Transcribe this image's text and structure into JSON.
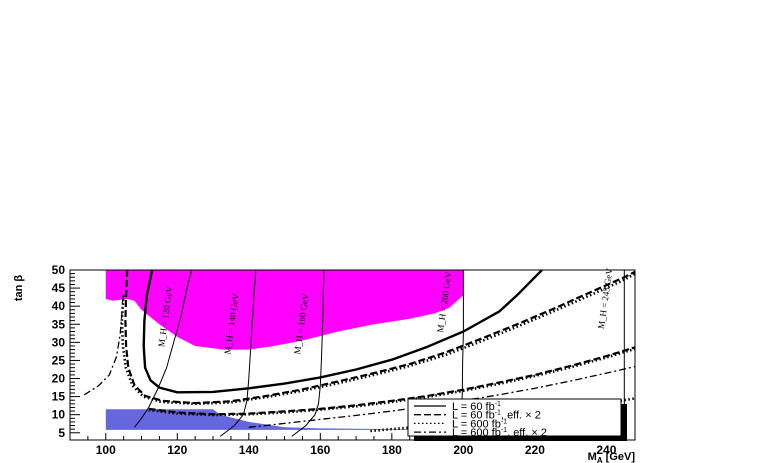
{
  "chart_data": {
    "type": "line",
    "xlabel": "M_A [GeV]",
    "ylabel": "tan β",
    "xlim": [
      90,
      248
    ],
    "ylim": [
      3,
      50
    ],
    "x_ticks": [
      100,
      120,
      140,
      160,
      180,
      200,
      220,
      240
    ],
    "y_ticks": [
      5,
      10,
      15,
      20,
      25,
      30,
      35,
      40,
      45,
      50
    ],
    "grid": false,
    "legend_position": "bottom-right",
    "regions": [
      {
        "color": "#ff00ff",
        "points": [
          [
            100,
            50
          ],
          [
            200,
            50
          ],
          [
            200,
            43
          ],
          [
            196,
            39.5
          ],
          [
            192,
            38
          ],
          [
            185,
            36.5
          ],
          [
            175,
            35
          ],
          [
            165,
            33
          ],
          [
            155,
            30.5
          ],
          [
            147,
            29
          ],
          [
            140,
            28
          ],
          [
            133,
            28
          ],
          [
            125,
            29
          ],
          [
            120,
            31.5
          ],
          [
            115,
            35
          ],
          [
            110,
            39
          ],
          [
            108,
            41.5
          ],
          [
            106,
            42
          ],
          [
            102,
            41.5
          ],
          [
            100,
            42
          ]
        ]
      },
      {
        "color": "#6666dd",
        "points": [
          [
            100,
            11.5
          ],
          [
            130,
            11.5
          ],
          [
            132,
            10
          ],
          [
            140,
            8
          ],
          [
            150,
            6.5
          ],
          [
            160,
            6.2
          ],
          [
            180,
            6
          ],
          [
            198,
            6
          ],
          [
            198,
            5.8
          ],
          [
            100,
            5.8
          ]
        ]
      }
    ],
    "series": [
      {
        "name": "L = 60 fb⁻¹",
        "style": "solid",
        "lines": [
          [
            [
              113,
              50
            ],
            [
              111.5,
              43
            ],
            [
              110.8,
              36
            ],
            [
              110.6,
              29
            ],
            [
              111,
              23
            ],
            [
              112.5,
              19.5
            ],
            [
              115,
              17.5
            ],
            [
              120,
              16.2
            ],
            [
              130,
              16.3
            ],
            [
              140,
              17.3
            ],
            [
              150,
              18.6
            ],
            [
              160,
              20.3
            ],
            [
              170,
              22.5
            ],
            [
              180,
              25.2
            ],
            [
              190,
              28.8
            ],
            [
              200,
              33
            ],
            [
              210,
              38.5
            ],
            [
              215,
              43
            ],
            [
              220,
              48
            ],
            [
              222,
              50
            ]
          ]
        ]
      },
      {
        "name": "L = 60 fb⁻¹, eff. × 2",
        "style": "dashed",
        "lines": [
          [
            [
              106,
              50
            ],
            [
              105.7,
              43
            ],
            [
              105.5,
              36
            ],
            [
              105.7,
              29
            ],
            [
              106.3,
              23
            ],
            [
              108,
              18.2
            ],
            [
              111,
              15.2
            ],
            [
              116,
              13.8
            ],
            [
              125,
              13.2
            ],
            [
              135,
              13.7
            ],
            [
              145,
              15.2
            ],
            [
              155,
              17
            ],
            [
              165,
              19.2
            ],
            [
              175,
              21.5
            ],
            [
              185,
              24
            ],
            [
              195,
              27.2
            ],
            [
              205,
              31
            ],
            [
              215,
              35
            ],
            [
              225,
              39.2
            ],
            [
              235,
              43.6
            ],
            [
              245,
              48
            ],
            [
              248,
              49.5
            ]
          ],
          [
            [
              112,
              11.6
            ],
            [
              120,
              10.6
            ],
            [
              130,
              10.1
            ],
            [
              140,
              10.3
            ],
            [
              150,
              10.9
            ],
            [
              160,
              11.6
            ],
            [
              170,
              12.6
            ],
            [
              180,
              13.8
            ],
            [
              190,
              15.2
            ],
            [
              200,
              16.9
            ],
            [
              210,
              18.9
            ],
            [
              220,
              21
            ],
            [
              230,
              23.5
            ],
            [
              240,
              26.2
            ],
            [
              248,
              28.6
            ]
          ]
        ]
      },
      {
        "name": "L = 600 fb⁻¹",
        "style": "dotted",
        "lines": [
          [
            [
              105,
              43
            ],
            [
              104.5,
              36
            ],
            [
              104.8,
              29
            ],
            [
              105.6,
              23
            ],
            [
              107.5,
              18
            ],
            [
              110.5,
              15
            ],
            [
              115.5,
              13.5
            ],
            [
              125,
              13
            ],
            [
              135,
              13.4
            ],
            [
              145,
              14.9
            ],
            [
              155,
              16.6
            ],
            [
              165,
              18.7
            ],
            [
              175,
              21
            ],
            [
              185,
              23.5
            ],
            [
              195,
              26.5
            ],
            [
              205,
              30.3
            ],
            [
              215,
              34.3
            ],
            [
              225,
              38.5
            ],
            [
              235,
              42.8
            ],
            [
              245,
              47.3
            ],
            [
              248,
              49
            ]
          ],
          [
            [
              112,
              11.3
            ],
            [
              120,
              10.3
            ],
            [
              130,
              9.9
            ],
            [
              140,
              10.1
            ],
            [
              150,
              10.6
            ],
            [
              160,
              11.4
            ],
            [
              170,
              12.3
            ],
            [
              180,
              13.5
            ],
            [
              190,
              14.9
            ],
            [
              200,
              16.6
            ],
            [
              210,
              18.5
            ],
            [
              220,
              20.7
            ],
            [
              230,
              23.1
            ],
            [
              240,
              25.8
            ],
            [
              248,
              28.2
            ]
          ],
          [
            [
              174,
              5.5
            ],
            [
              180,
              6
            ],
            [
              190,
              6.8
            ],
            [
              200,
              7.8
            ],
            [
              210,
              8.9
            ],
            [
              220,
              10.2
            ],
            [
              230,
              11.6
            ],
            [
              240,
              13.2
            ],
            [
              248,
              14.5
            ]
          ]
        ]
      },
      {
        "name": "L = 600 fb⁻¹, eff. × 2",
        "style": "dashdot",
        "lines": [
          [
            [
              94,
              15.5
            ],
            [
              98,
              18
            ],
            [
              101,
              21
            ],
            [
              103,
              26
            ],
            [
              104,
              32
            ],
            [
              104.5,
              38
            ],
            [
              104.8,
              43
            ]
          ],
          [
            [
              140,
              6.5
            ],
            [
              150,
              7.6
            ],
            [
              160,
              8.7
            ],
            [
              170,
              9.8
            ],
            [
              180,
              11
            ],
            [
              190,
              12.4
            ],
            [
              200,
              13.9
            ],
            [
              210,
              15.5
            ],
            [
              220,
              17.3
            ],
            [
              230,
              19.3
            ],
            [
              240,
              21.5
            ],
            [
              248,
              23.3
            ]
          ]
        ]
      }
    ],
    "mass_contours": [
      {
        "label": "M_H = 120 GeV",
        "points": [
          [
            124,
            50
          ],
          [
            122.5,
            44
          ],
          [
            121,
            37
          ],
          [
            119,
            30
          ],
          [
            117,
            23
          ],
          [
            114.5,
            17
          ],
          [
            112,
            12
          ],
          [
            110,
            9
          ],
          [
            108,
            6.5
          ]
        ],
        "label_at": [
          117.5,
          37
        ]
      },
      {
        "label": "M_H = 140 GeV",
        "points": [
          [
            142,
            50
          ],
          [
            141.5,
            44
          ],
          [
            141,
            36
          ],
          [
            140.5,
            28
          ],
          [
            140,
            20
          ],
          [
            139.5,
            14
          ],
          [
            138.5,
            10
          ],
          [
            136,
            7
          ],
          [
            132,
            4
          ]
        ],
        "label_at": [
          136,
          35
        ]
      },
      {
        "label": "M_H = 160 GeV",
        "points": [
          [
            161,
            50
          ],
          [
            160.8,
            42
          ],
          [
            160.6,
            34
          ],
          [
            160.3,
            25
          ],
          [
            160,
            18
          ],
          [
            159.5,
            13
          ],
          [
            158.5,
            10
          ],
          [
            156,
            7
          ],
          [
            152,
            4
          ]
        ],
        "label_at": [
          155.5,
          35
        ]
      },
      {
        "label": "M_H = 200 GeV",
        "points": [
          [
            200,
            50
          ],
          [
            200,
            42
          ],
          [
            200,
            33
          ],
          [
            199.8,
            24
          ],
          [
            199.7,
            16
          ],
          [
            199.5,
            11
          ],
          [
            199.5,
            6
          ],
          [
            199.5,
            3
          ]
        ],
        "label_at": [
          195.5,
          41
        ]
      },
      {
        "label": "M_H = 245 GeV",
        "points": [
          [
            245,
            50
          ],
          [
            245,
            42
          ],
          [
            245,
            33
          ],
          [
            245,
            24
          ],
          [
            245,
            16
          ],
          [
            245,
            10
          ],
          [
            245,
            5
          ],
          [
            245,
            3
          ]
        ],
        "label_at": [
          240.5,
          42
        ]
      }
    ]
  }
}
